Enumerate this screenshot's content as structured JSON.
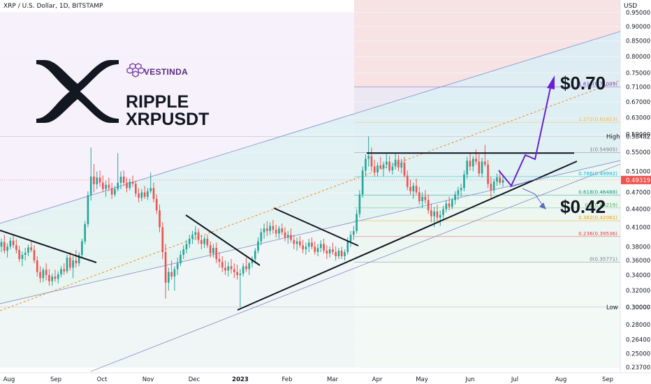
{
  "header": {
    "title": "XRP / U.S. Dollar, 1D, BITSTAMP",
    "currency": "USD"
  },
  "branding": {
    "company": "VESTINDA",
    "name": "RIPPLE",
    "ticker": "XRPUSDT",
    "accent_color": "#5b2a86"
  },
  "targets": {
    "upside": "$0.70",
    "downside": "$0.42"
  },
  "chart_data": {
    "type": "candlestick",
    "x_ticks": [
      "Aug",
      "Sep",
      "Oct",
      "Nov",
      "Dec",
      "2023",
      "Feb",
      "Mar",
      "Apr",
      "May",
      "Jun",
      "Jul",
      "Aug",
      "Sep"
    ],
    "y_scale": "log",
    "y_ticks": [
      "0.95000",
      "0.90000",
      "0.85000",
      "0.80000",
      "0.75000",
      "0.71000",
      "0.67000",
      "0.63000",
      "0.59000",
      "0.55000",
      "0.51000",
      "0.47000",
      "0.44000",
      "0.41000",
      "0.38000",
      "0.36000",
      "0.34000",
      "0.32000",
      "0.30000",
      "0.28000",
      "0.26400",
      "0.25000",
      "0.23700"
    ],
    "ylim": [
      0.237,
      0.95
    ],
    "high": {
      "label": "High",
      "value": "0.58482"
    },
    "low": {
      "label": "Low",
      "value": "0.30000"
    },
    "last_price": "0.49319",
    "fibonacci": [
      {
        "level": 0,
        "label": "0(0.35771)",
        "value": 0.35771,
        "color": "#787b86"
      },
      {
        "level": 0.236,
        "label": "0.236(0.39536)",
        "value": 0.39536,
        "color": "#f23645"
      },
      {
        "level": 0.382,
        "label": "0.382(0.42061)",
        "value": 0.42061,
        "color": "#ff9800"
      },
      {
        "level": 0.5,
        "label": "0.5(0.44219)",
        "value": 0.44219,
        "color": "#4caf50"
      },
      {
        "level": 0.618,
        "label": "0.618(0.46488)",
        "value": 0.46488,
        "color": "#089981"
      },
      {
        "level": 0.786,
        "label": "0.786(0.49992)",
        "value": 0.49992,
        "color": "#00bcd4"
      },
      {
        "level": 1,
        "label": "1(0.54905)",
        "value": 0.54905,
        "color": "#787b86"
      },
      {
        "level": 1.272,
        "label": "1.272(0.61823)",
        "value": 0.61823,
        "color": "#f7b733"
      },
      {
        "level": 1.618,
        "label": "1.618(0.71039)",
        "value": 0.71039,
        "color": "#673ab7"
      }
    ],
    "resistance": 0.548,
    "candles": [
      [
        0.38,
        0.392,
        0.372,
        0.387
      ],
      [
        0.387,
        0.398,
        0.37,
        0.374
      ],
      [
        0.374,
        0.385,
        0.364,
        0.38
      ],
      [
        0.38,
        0.394,
        0.376,
        0.389
      ],
      [
        0.389,
        0.397,
        0.378,
        0.382
      ],
      [
        0.382,
        0.391,
        0.37,
        0.375
      ],
      [
        0.375,
        0.381,
        0.358,
        0.362
      ],
      [
        0.362,
        0.373,
        0.352,
        0.368
      ],
      [
        0.368,
        0.378,
        0.36,
        0.371
      ],
      [
        0.371,
        0.383,
        0.366,
        0.379
      ],
      [
        0.379,
        0.39,
        0.372,
        0.375
      ],
      [
        0.375,
        0.382,
        0.356,
        0.36
      ],
      [
        0.36,
        0.366,
        0.338,
        0.344
      ],
      [
        0.344,
        0.352,
        0.33,
        0.336
      ],
      [
        0.336,
        0.35,
        0.331,
        0.347
      ],
      [
        0.347,
        0.356,
        0.333,
        0.34
      ],
      [
        0.34,
        0.348,
        0.326,
        0.332
      ],
      [
        0.332,
        0.342,
        0.326,
        0.338
      ],
      [
        0.338,
        0.347,
        0.331,
        0.335
      ],
      [
        0.335,
        0.345,
        0.329,
        0.341
      ],
      [
        0.341,
        0.352,
        0.337,
        0.348
      ],
      [
        0.348,
        0.356,
        0.34,
        0.345
      ],
      [
        0.345,
        0.368,
        0.342,
        0.364
      ],
      [
        0.364,
        0.372,
        0.346,
        0.35
      ],
      [
        0.35,
        0.366,
        0.336,
        0.36
      ],
      [
        0.36,
        0.375,
        0.35,
        0.356
      ],
      [
        0.356,
        0.372,
        0.352,
        0.368
      ],
      [
        0.368,
        0.392,
        0.365,
        0.388
      ],
      [
        0.388,
        0.42,
        0.384,
        0.415
      ],
      [
        0.415,
        0.472,
        0.41,
        0.465
      ],
      [
        0.465,
        0.56,
        0.455,
        0.5
      ],
      [
        0.5,
        0.525,
        0.47,
        0.485
      ],
      [
        0.485,
        0.51,
        0.476,
        0.498
      ],
      [
        0.498,
        0.512,
        0.48,
        0.488
      ],
      [
        0.488,
        0.502,
        0.47,
        0.476
      ],
      [
        0.476,
        0.492,
        0.462,
        0.484
      ],
      [
        0.484,
        0.498,
        0.472,
        0.478
      ],
      [
        0.478,
        0.488,
        0.458,
        0.466
      ],
      [
        0.466,
        0.482,
        0.462,
        0.476
      ],
      [
        0.476,
        0.548,
        0.472,
        0.488
      ],
      [
        0.488,
        0.51,
        0.476,
        0.5
      ],
      [
        0.5,
        0.512,
        0.482,
        0.488
      ],
      [
        0.488,
        0.498,
        0.47,
        0.478
      ],
      [
        0.478,
        0.496,
        0.474,
        0.49
      ],
      [
        0.49,
        0.502,
        0.48,
        0.486
      ],
      [
        0.486,
        0.492,
        0.462,
        0.468
      ],
      [
        0.468,
        0.478,
        0.452,
        0.46
      ],
      [
        0.46,
        0.476,
        0.454,
        0.47
      ],
      [
        0.47,
        0.482,
        0.458,
        0.462
      ],
      [
        0.462,
        0.478,
        0.456,
        0.472
      ],
      [
        0.472,
        0.508,
        0.468,
        0.478
      ],
      [
        0.478,
        0.488,
        0.452,
        0.458
      ],
      [
        0.458,
        0.466,
        0.432,
        0.438
      ],
      [
        0.438,
        0.448,
        0.402,
        0.41
      ],
      [
        0.41,
        0.418,
        0.362,
        0.372
      ],
      [
        0.372,
        0.384,
        0.31,
        0.33
      ],
      [
        0.33,
        0.35,
        0.32,
        0.344
      ],
      [
        0.344,
        0.36,
        0.334,
        0.338
      ],
      [
        0.338,
        0.352,
        0.32,
        0.348
      ],
      [
        0.348,
        0.364,
        0.34,
        0.356
      ],
      [
        0.356,
        0.374,
        0.352,
        0.368
      ],
      [
        0.368,
        0.382,
        0.362,
        0.376
      ],
      [
        0.376,
        0.39,
        0.37,
        0.384
      ],
      [
        0.384,
        0.398,
        0.378,
        0.392
      ],
      [
        0.392,
        0.404,
        0.384,
        0.398
      ],
      [
        0.398,
        0.412,
        0.39,
        0.402
      ],
      [
        0.402,
        0.408,
        0.384,
        0.39
      ],
      [
        0.39,
        0.398,
        0.376,
        0.384
      ],
      [
        0.384,
        0.396,
        0.378,
        0.392
      ],
      [
        0.392,
        0.398,
        0.378,
        0.382
      ],
      [
        0.382,
        0.388,
        0.364,
        0.37
      ],
      [
        0.37,
        0.384,
        0.364,
        0.378
      ],
      [
        0.378,
        0.386,
        0.356,
        0.362
      ],
      [
        0.362,
        0.372,
        0.35,
        0.358
      ],
      [
        0.358,
        0.366,
        0.344,
        0.35
      ],
      [
        0.35,
        0.36,
        0.34,
        0.346
      ],
      [
        0.346,
        0.358,
        0.338,
        0.352
      ],
      [
        0.352,
        0.362,
        0.342,
        0.348
      ],
      [
        0.348,
        0.356,
        0.336,
        0.344
      ],
      [
        0.344,
        0.354,
        0.334,
        0.34
      ],
      [
        0.34,
        0.348,
        0.3,
        0.342
      ],
      [
        0.342,
        0.356,
        0.338,
        0.352
      ],
      [
        0.352,
        0.364,
        0.344,
        0.348
      ],
      [
        0.348,
        0.358,
        0.34,
        0.356
      ],
      [
        0.356,
        0.366,
        0.35,
        0.362
      ],
      [
        0.362,
        0.378,
        0.356,
        0.374
      ],
      [
        0.374,
        0.394,
        0.37,
        0.388
      ],
      [
        0.388,
        0.408,
        0.382,
        0.402
      ],
      [
        0.402,
        0.416,
        0.392,
        0.408
      ],
      [
        0.408,
        0.42,
        0.396,
        0.404
      ],
      [
        0.404,
        0.418,
        0.398,
        0.412
      ],
      [
        0.412,
        0.422,
        0.4,
        0.406
      ],
      [
        0.406,
        0.414,
        0.394,
        0.4
      ],
      [
        0.4,
        0.412,
        0.392,
        0.408
      ],
      [
        0.408,
        0.416,
        0.398,
        0.402
      ],
      [
        0.402,
        0.41,
        0.388,
        0.394
      ],
      [
        0.394,
        0.404,
        0.384,
        0.398
      ],
      [
        0.398,
        0.408,
        0.386,
        0.39
      ],
      [
        0.39,
        0.398,
        0.376,
        0.384
      ],
      [
        0.384,
        0.394,
        0.374,
        0.388
      ],
      [
        0.388,
        0.396,
        0.378,
        0.382
      ],
      [
        0.382,
        0.39,
        0.37,
        0.376
      ],
      [
        0.376,
        0.386,
        0.368,
        0.38
      ],
      [
        0.38,
        0.392,
        0.372,
        0.386
      ],
      [
        0.386,
        0.394,
        0.376,
        0.38
      ],
      [
        0.38,
        0.388,
        0.368,
        0.372
      ],
      [
        0.372,
        0.384,
        0.366,
        0.378
      ],
      [
        0.378,
        0.39,
        0.372,
        0.384
      ],
      [
        0.384,
        0.392,
        0.37,
        0.374
      ],
      [
        0.374,
        0.382,
        0.362,
        0.37
      ],
      [
        0.37,
        0.38,
        0.364,
        0.376
      ],
      [
        0.376,
        0.386,
        0.368,
        0.372
      ],
      [
        0.372,
        0.38,
        0.36,
        0.366
      ],
      [
        0.366,
        0.378,
        0.362,
        0.374
      ],
      [
        0.374,
        0.38,
        0.362,
        0.366
      ],
      [
        0.366,
        0.376,
        0.36,
        0.372
      ],
      [
        0.372,
        0.394,
        0.368,
        0.388
      ],
      [
        0.388,
        0.404,
        0.38,
        0.398
      ],
      [
        0.398,
        0.412,
        0.39,
        0.404
      ],
      [
        0.404,
        0.44,
        0.4,
        0.432
      ],
      [
        0.432,
        0.474,
        0.426,
        0.466
      ],
      [
        0.466,
        0.52,
        0.46,
        0.512
      ],
      [
        0.512,
        0.545,
        0.5,
        0.536
      ],
      [
        0.536,
        0.585,
        0.52,
        0.542
      ],
      [
        0.542,
        0.56,
        0.51,
        0.52
      ],
      [
        0.52,
        0.534,
        0.5,
        0.508
      ],
      [
        0.508,
        0.528,
        0.5,
        0.522
      ],
      [
        0.522,
        0.54,
        0.514,
        0.516
      ],
      [
        0.516,
        0.53,
        0.5,
        0.524
      ],
      [
        0.524,
        0.546,
        0.516,
        0.53
      ],
      [
        0.53,
        0.542,
        0.508,
        0.512
      ],
      [
        0.512,
        0.528,
        0.504,
        0.52
      ],
      [
        0.52,
        0.548,
        0.514,
        0.534
      ],
      [
        0.534,
        0.544,
        0.51,
        0.518
      ],
      [
        0.518,
        0.536,
        0.506,
        0.528
      ],
      [
        0.528,
        0.54,
        0.498,
        0.502
      ],
      [
        0.502,
        0.512,
        0.474,
        0.48
      ],
      [
        0.48,
        0.494,
        0.466,
        0.472
      ],
      [
        0.472,
        0.488,
        0.458,
        0.482
      ],
      [
        0.482,
        0.496,
        0.466,
        0.47
      ],
      [
        0.47,
        0.48,
        0.448,
        0.454
      ],
      [
        0.454,
        0.47,
        0.442,
        0.462
      ],
      [
        0.462,
        0.474,
        0.45,
        0.456
      ],
      [
        0.456,
        0.466,
        0.432,
        0.438
      ],
      [
        0.438,
        0.45,
        0.418,
        0.428
      ],
      [
        0.428,
        0.444,
        0.41,
        0.436
      ],
      [
        0.436,
        0.448,
        0.42,
        0.426
      ],
      [
        0.426,
        0.438,
        0.412,
        0.43
      ],
      [
        0.43,
        0.446,
        0.424,
        0.44
      ],
      [
        0.44,
        0.456,
        0.434,
        0.45
      ],
      [
        0.45,
        0.462,
        0.438,
        0.444
      ],
      [
        0.444,
        0.46,
        0.44,
        0.456
      ],
      [
        0.456,
        0.472,
        0.448,
        0.466
      ],
      [
        0.466,
        0.48,
        0.456,
        0.474
      ],
      [
        0.474,
        0.486,
        0.462,
        0.478
      ],
      [
        0.478,
        0.512,
        0.472,
        0.504
      ],
      [
        0.504,
        0.54,
        0.496,
        0.532
      ],
      [
        0.532,
        0.548,
        0.512,
        0.52
      ],
      [
        0.52,
        0.542,
        0.51,
        0.536
      ],
      [
        0.536,
        0.556,
        0.524,
        0.53
      ],
      [
        0.53,
        0.546,
        0.5,
        0.506
      ],
      [
        0.506,
        0.538,
        0.498,
        0.53
      ],
      [
        0.53,
        0.566,
        0.52,
        0.524
      ],
      [
        0.524,
        0.534,
        0.478,
        0.486
      ],
      [
        0.486,
        0.5,
        0.46,
        0.474
      ],
      [
        0.474,
        0.496,
        0.468,
        0.49
      ],
      [
        0.49,
        0.506,
        0.482,
        0.498
      ],
      [
        0.498,
        0.51,
        0.484,
        0.488
      ],
      [
        0.488,
        0.502,
        0.48,
        0.493
      ]
    ]
  }
}
